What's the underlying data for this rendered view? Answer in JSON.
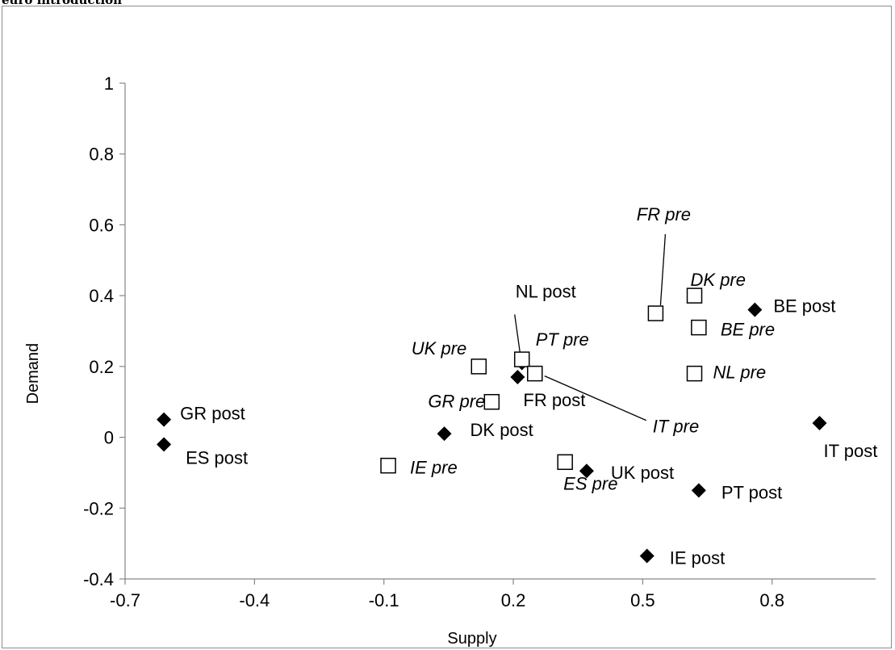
{
  "caption": "euro introduction",
  "chart_data": {
    "type": "scatter",
    "title": "",
    "xlabel": "Supply",
    "ylabel": "Demand",
    "xlim": [
      -0.7,
      1.04
    ],
    "ylim": [
      -0.4,
      1.0
    ],
    "x_ticks": [
      "-0.7",
      "-0.4",
      "-0.1",
      "0.2",
      "0.5",
      "0.8"
    ],
    "y_ticks": [
      "1",
      "0.8",
      "0.6",
      "0.4",
      "0.2",
      "0",
      "-0.2",
      "-0.4"
    ],
    "grid": false,
    "legend": "none",
    "series": [
      {
        "marker": "filled-diamond",
        "style": "normal",
        "points": [
          {
            "label": "GR post",
            "x": -0.61,
            "y": 0.05
          },
          {
            "label": "ES post",
            "x": -0.61,
            "y": -0.02
          },
          {
            "label": "DK post",
            "x": 0.04,
            "y": 0.01
          },
          {
            "label": "FR post",
            "x": 0.21,
            "y": 0.17
          },
          {
            "label": "NL post",
            "x": 0.22,
            "y": 0.21
          },
          {
            "label": "UK post",
            "x": 0.37,
            "y": -0.095
          },
          {
            "label": "IE post",
            "x": 0.51,
            "y": -0.335
          },
          {
            "label": "PT post",
            "x": 0.63,
            "y": -0.15
          },
          {
            "label": "BE post",
            "x": 0.76,
            "y": 0.36
          },
          {
            "label": "IT post",
            "x": 0.91,
            "y": 0.04
          }
        ]
      },
      {
        "marker": "open-square",
        "style": "italic",
        "points": [
          {
            "label": "IE pre",
            "x": -0.09,
            "y": -0.08
          },
          {
            "label": "UK pre",
            "x": 0.12,
            "y": 0.2
          },
          {
            "label": "GR pre",
            "x": 0.15,
            "y": 0.1
          },
          {
            "label": "PT pre",
            "x": 0.22,
            "y": 0.22
          },
          {
            "label": "IT pre",
            "x": 0.25,
            "y": 0.18
          },
          {
            "label": "ES pre",
            "x": 0.32,
            "y": -0.07
          },
          {
            "label": "FR pre",
            "x": 0.53,
            "y": 0.35
          },
          {
            "label": "DK pre",
            "x": 0.62,
            "y": 0.4
          },
          {
            "label": "NL pre",
            "x": 0.62,
            "y": 0.18
          },
          {
            "label": "BE pre",
            "x": 0.63,
            "y": 0.31
          }
        ]
      }
    ]
  }
}
